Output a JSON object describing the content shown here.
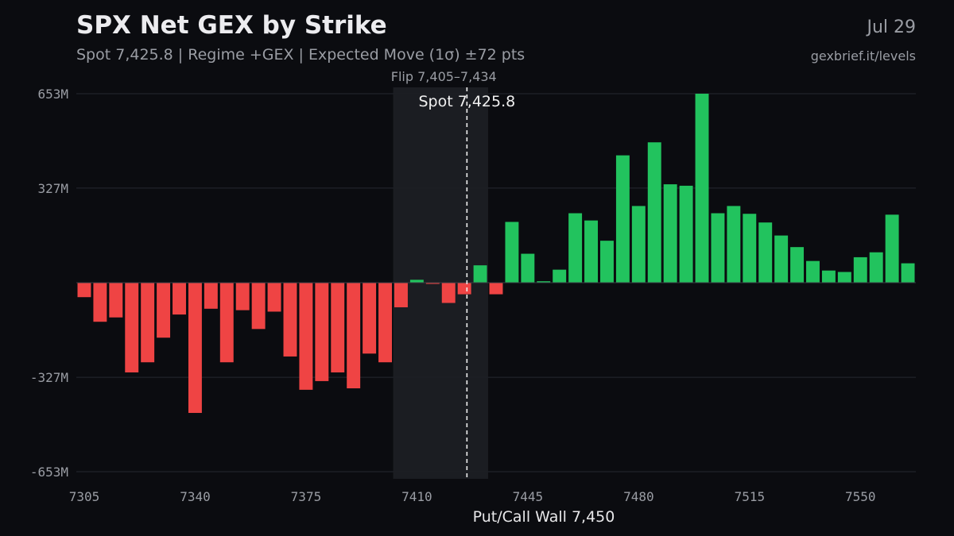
{
  "header": {
    "title": "SPX Net GEX by Strike",
    "subtitle": "Spot 7,425.8 | Regime +GEX | Expected Move (1σ) ±72 pts",
    "date": "Jul 29",
    "source": "gexbrief.it/levels"
  },
  "chart_data": {
    "type": "bar",
    "x_unit": "strike",
    "y_unit": "net GEX ($M)",
    "strike_step": 5,
    "categories": [
      7305,
      7310,
      7315,
      7320,
      7325,
      7330,
      7335,
      7340,
      7345,
      7350,
      7355,
      7360,
      7365,
      7370,
      7375,
      7380,
      7385,
      7390,
      7395,
      7400,
      7405,
      7410,
      7415,
      7420,
      7425,
      7430,
      7435,
      7440,
      7445,
      7450,
      7455,
      7460,
      7465,
      7470,
      7475,
      7480,
      7485,
      7490,
      7495,
      7500,
      7505,
      7510,
      7515,
      7520,
      7525,
      7530,
      7535,
      7540,
      7545,
      7550,
      7555,
      7560,
      7565
    ],
    "values": [
      -50,
      -135,
      -120,
      -310,
      -275,
      -190,
      -110,
      -450,
      -90,
      -275,
      -95,
      -160,
      -100,
      -255,
      -370,
      -340,
      -310,
      -365,
      -245,
      -275,
      -85,
      10,
      -3,
      -70,
      -40,
      60,
      -40,
      210,
      100,
      5,
      45,
      240,
      215,
      145,
      440,
      265,
      485,
      340,
      335,
      653,
      240,
      265,
      238,
      208,
      163,
      123,
      75,
      42,
      37,
      88,
      105,
      235,
      67
    ],
    "xticks": [
      "7305",
      "7340",
      "7375",
      "7410",
      "7445",
      "7480",
      "7515",
      "7550"
    ],
    "yticks": [
      "653M",
      "327M",
      "-327M",
      "-653M"
    ],
    "ytick_values": [
      653,
      327,
      -327,
      -653
    ],
    "ylim": [
      -680,
      653
    ],
    "xlabel": "Put/Call Wall 7,450",
    "ylabel": "",
    "grid": "horizontal",
    "legend": "none",
    "colors": {
      "positive": "#22c35e",
      "negative": "#ef4444",
      "background": "#0b0c10",
      "grid": "#262930",
      "band": "#1c1f24"
    },
    "flip_band": {
      "low": 7405,
      "high": 7434,
      "label": "Flip 7,405–7,434"
    },
    "spot": {
      "value": 7425.8,
      "label": "Spot 7,425.8"
    }
  }
}
